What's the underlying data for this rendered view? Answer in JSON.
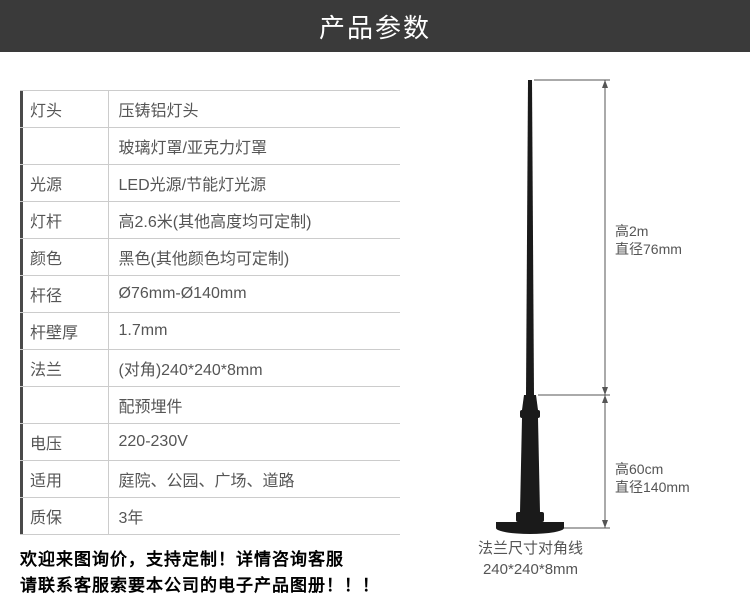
{
  "header": {
    "title": "产品参数",
    "bg_color": "#3a3a3a",
    "text_color": "#ffffff",
    "fontsize": 26
  },
  "table": {
    "border_color": "#cccccc",
    "accent_color": "#4a4a4a",
    "text_color": "#555555",
    "fontsize": 16,
    "rows": [
      {
        "label": "灯头",
        "value": "压铸铝灯头"
      },
      {
        "label": "",
        "value": "玻璃灯罩/亚克力灯罩"
      },
      {
        "label": "光源",
        "value": "LED光源/节能灯光源"
      },
      {
        "label": "灯杆",
        "value": "高2.6米(其他高度均可定制)"
      },
      {
        "label": "颜色",
        "value": "黑色(其他颜色均可定制)"
      },
      {
        "label": "杆径",
        "value": " Ø76mm-Ø140mm"
      },
      {
        "label": "杆壁厚",
        "value": " 1.7mm"
      },
      {
        "label": "法兰",
        "value": "(对角)240*240*8mm"
      },
      {
        "label": "",
        "value": "配预埋件"
      },
      {
        "label": "电压",
        "value": " 220-230V"
      },
      {
        "label": "适用",
        "value": " 庭院、公园、广场、道路"
      },
      {
        "label": "质保",
        "value": " 3年"
      }
    ]
  },
  "footer": {
    "line1": "欢迎来图询价，支持定制！详情咨询客服",
    "line2": "请联系客服索要本公司的电子产品图册！！！",
    "fontsize": 17,
    "color": "#000000"
  },
  "diagram": {
    "pole_color": "#1a1a1a",
    "line_color": "#555555",
    "text_color": "#555555",
    "upper": {
      "l1": "高2m",
      "l2": "直径76mm"
    },
    "lower": {
      "l1": "高60cm",
      "l2": "直径140mm"
    },
    "bottom": {
      "l1": "法兰尺寸对角线",
      "l2": "240*240*8mm"
    }
  }
}
